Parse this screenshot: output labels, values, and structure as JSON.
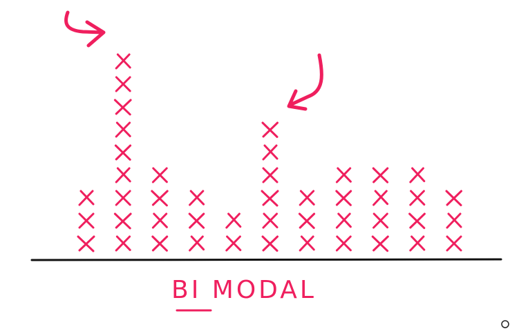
{
  "chart_data": {
    "type": "dotplot",
    "title": "BI MODAL",
    "categories": [
      null,
      null,
      null,
      null,
      null,
      null,
      null,
      null,
      null,
      null,
      null
    ],
    "values": [
      3,
      9,
      4,
      3,
      2,
      6,
      3,
      4,
      4,
      4,
      3
    ],
    "color": "#ef1f5e"
  }
}
